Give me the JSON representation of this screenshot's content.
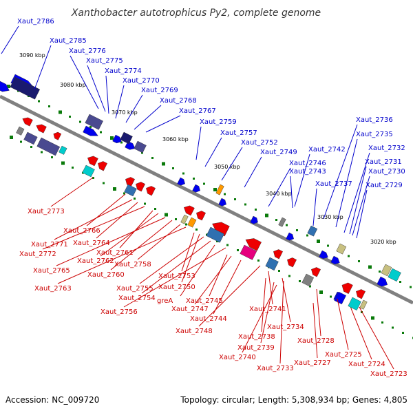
{
  "title": "Xanthobacter autotrophicus Py2, complete genome",
  "footer": {
    "accession": "Accession: NC_009720",
    "summary": "Topology: circular; Length: 5,308,934 bp; Genes: 4,805"
  },
  "colors": {
    "forward_label": "#0000cc",
    "reverse_label": "#cc0000",
    "forward_cds": "#0000ee",
    "reverse_cds": "#ee0000",
    "backbone": "#808080",
    "tick_marks": "#0a7a0a",
    "rna_features": [
      "#1a1a6e",
      "#4a4a90",
      "#00cccc",
      "#e6007e",
      "#ff9900",
      "#c8c080",
      "#3070b0",
      "#808080"
    ]
  },
  "ticks": [
    "3090 kbp",
    "3080 kbp",
    "3070 kbp",
    "3060 kbp",
    "3050 kbp",
    "3040 kbp",
    "3030 kbp",
    "3020 kbp"
  ],
  "forward_genes": [
    "Xaut_2786",
    "Xaut_2785",
    "Xaut_2776",
    "Xaut_2775",
    "Xaut_2774",
    "Xaut_2770",
    "Xaut_2769",
    "Xaut_2768",
    "Xaut_2767",
    "Xaut_2759",
    "Xaut_2757",
    "Xaut_2752",
    "Xaut_2749",
    "Xaut_2746",
    "Xaut_2743",
    "Xaut_2742",
    "Xaut_2737",
    "Xaut_2736",
    "Xaut_2735",
    "Xaut_2732",
    "Xaut_2731",
    "Xaut_2730",
    "Xaut_2729"
  ],
  "reverse_genes": [
    "Xaut_2773",
    "Xaut_2766",
    "Xaut_2771",
    "Xaut_2764",
    "Xaut_2772",
    "Xaut_2761",
    "Xaut_2762",
    "Xaut_2765",
    "Xaut_2758",
    "Xaut_2760",
    "Xaut_2763",
    "Xaut_2753",
    "Xaut_2755",
    "Xaut_2750",
    "Xaut_2754",
    "greA",
    "Xaut_2745",
    "Xaut_2756",
    "Xaut_2747",
    "Xaut_2741",
    "Xaut_2744",
    "Xaut_2748",
    "Xaut_2734",
    "Xaut_2738",
    "Xaut_2728",
    "Xaut_2739",
    "Xaut_2740",
    "Xaut_2725",
    "Xaut_2733",
    "Xaut_2727",
    "Xaut_2724",
    "Xaut_2723"
  ]
}
